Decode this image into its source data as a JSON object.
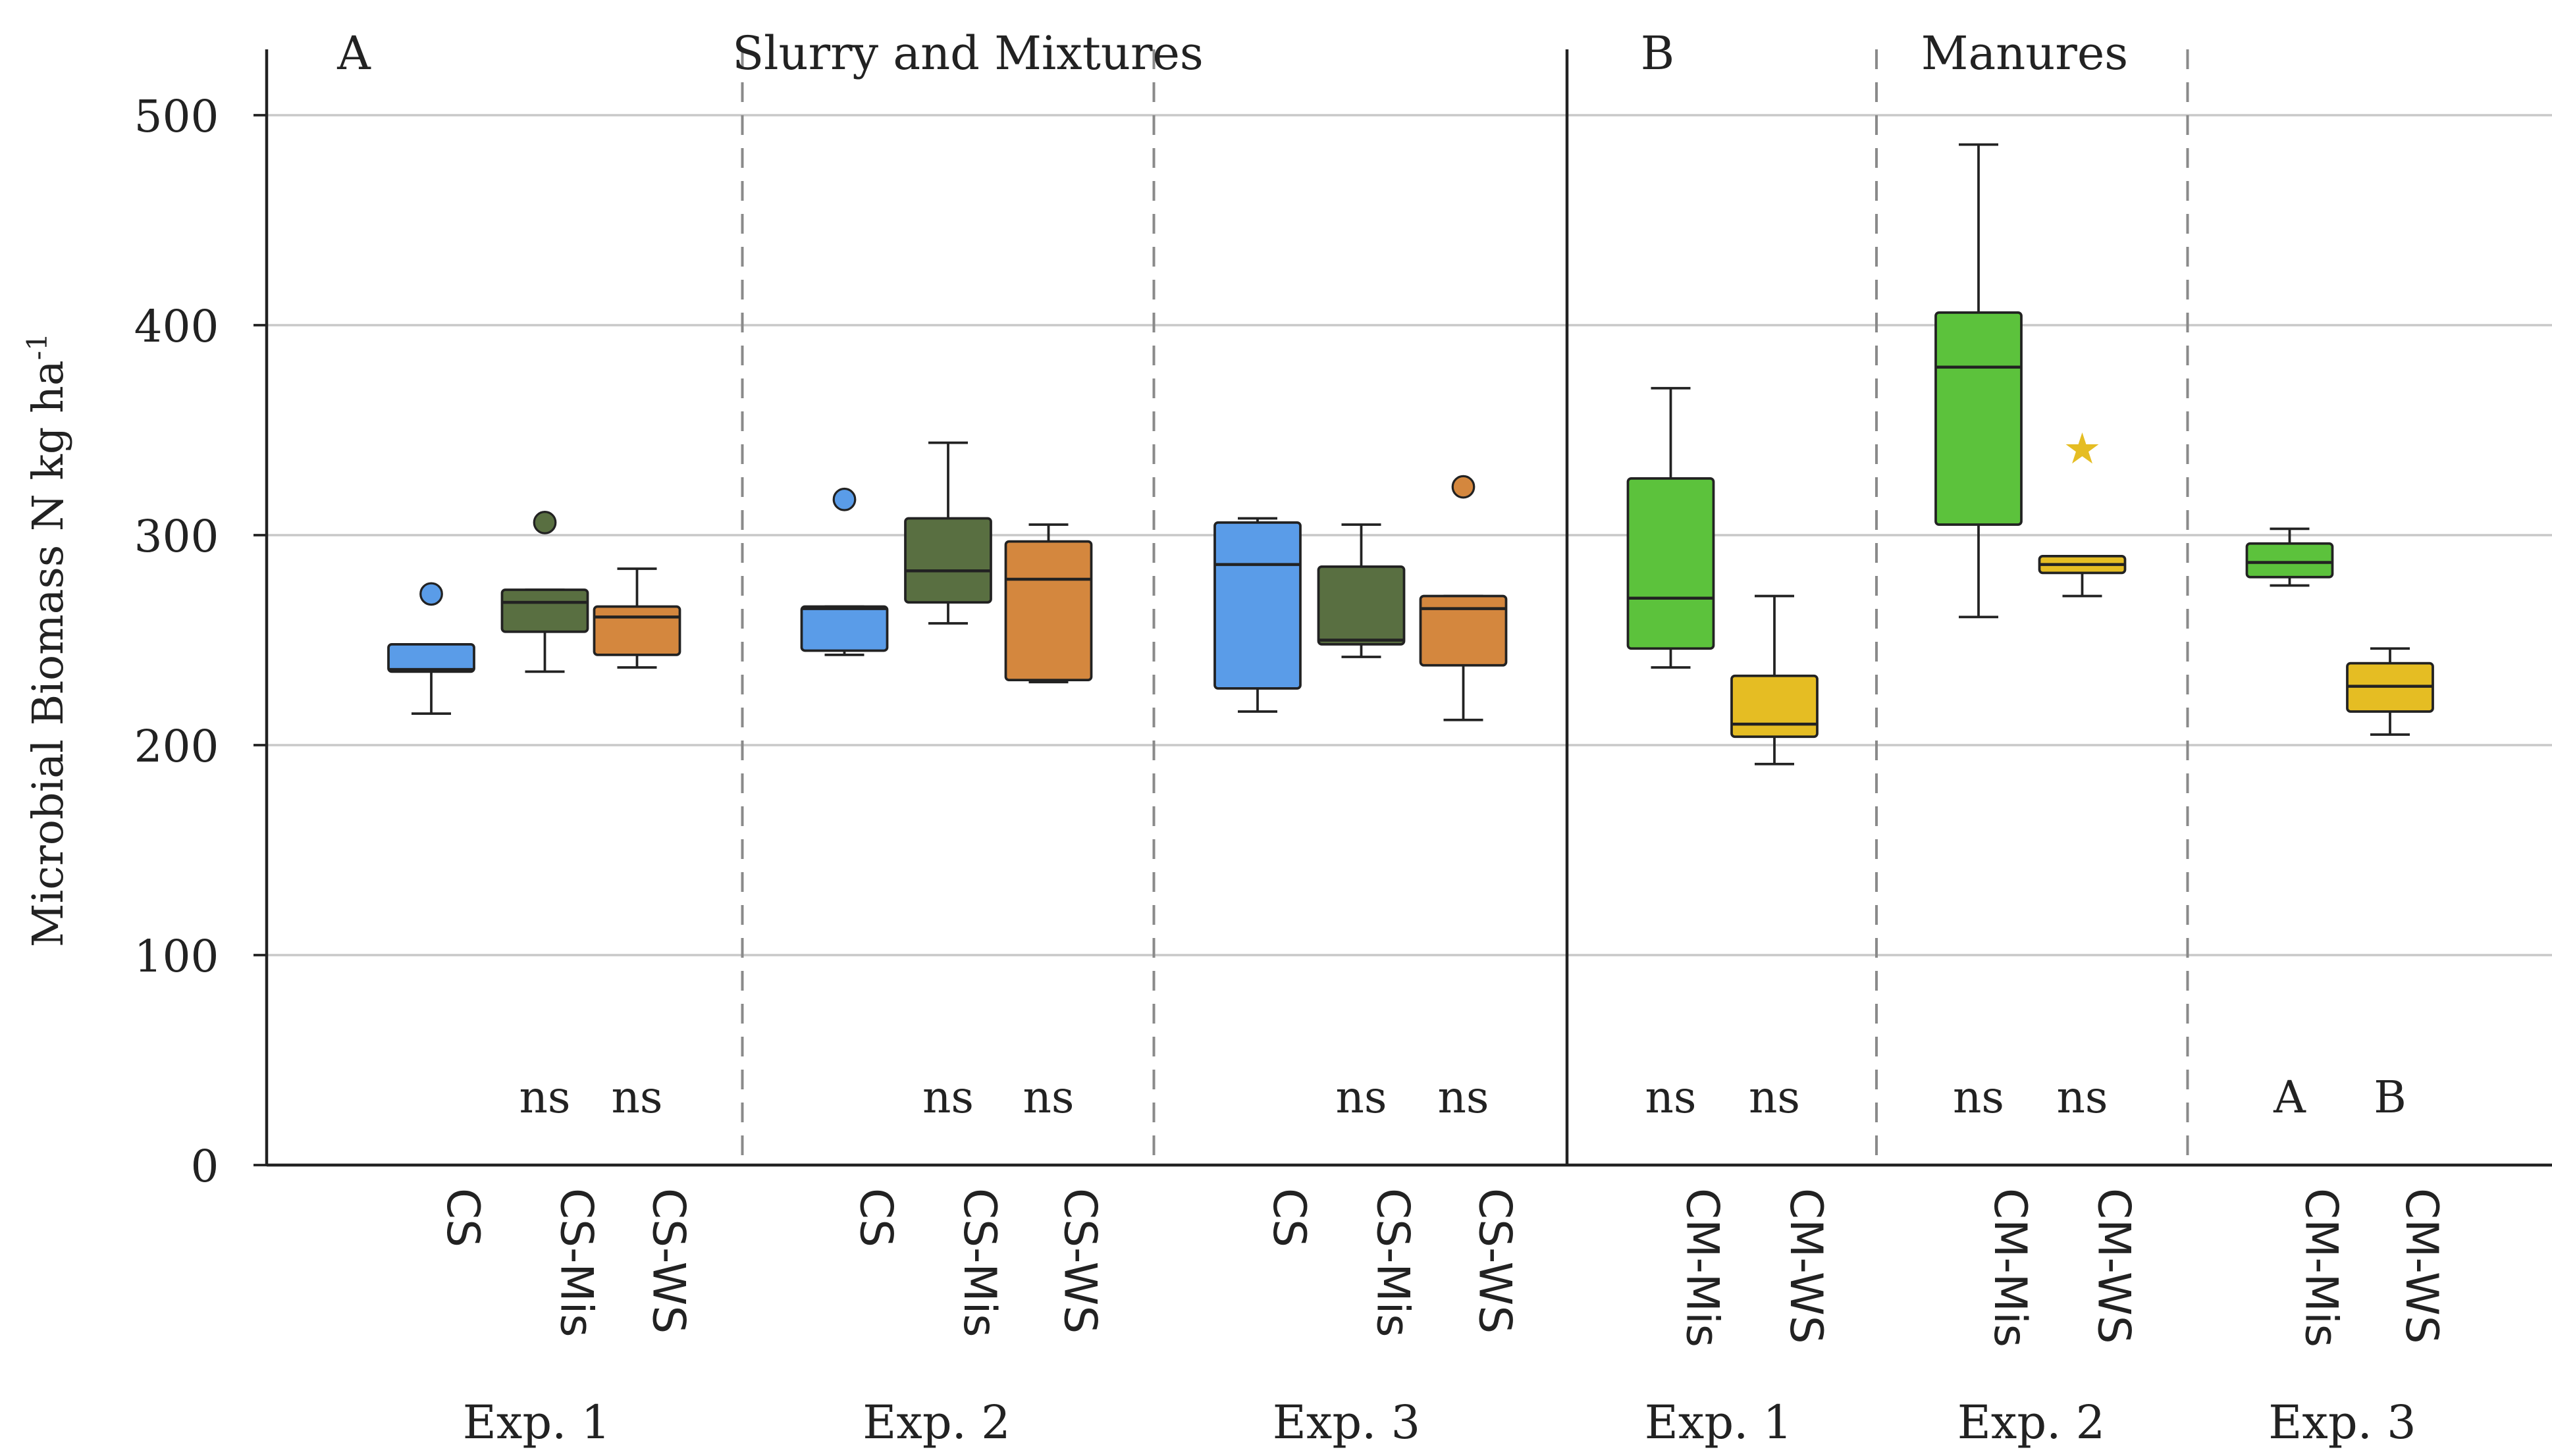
{
  "chart_data": {
    "type": "boxplot",
    "ylabel": "Microbial Biomass N kg ha",
    "ylabel_sup": "-1",
    "ylim": [
      0,
      500
    ],
    "yticks": [
      0,
      100,
      200,
      300,
      400,
      500
    ],
    "grid": true,
    "colors": {
      "CS": "#5a9ce8",
      "CS-Mis": "#596f41",
      "CS-WS": "#d4873e",
      "CM-Mis": "#5cc23c",
      "CM-WS": "#e5bd23"
    },
    "panels": [
      {
        "letter": "A",
        "title": "Slurry and Mixtures",
        "groups": [
          {
            "label": "Exp. 1",
            "boxes": [
              {
                "name": "CS",
                "min": 215,
                "q1": 235,
                "median": 236,
                "q3": 248,
                "max": 248,
                "outliers": [
                  {
                    "value": 272,
                    "marker": "circle"
                  }
                ],
                "sig": ""
              },
              {
                "name": "CS-Mis",
                "min": 235,
                "q1": 254,
                "median": 268,
                "q3": 274,
                "max": 274,
                "outliers": [
                  {
                    "value": 306,
                    "marker": "circle"
                  }
                ],
                "sig": "ns"
              },
              {
                "name": "CS-WS",
                "min": 237,
                "q1": 243,
                "median": 261,
                "q3": 266,
                "max": 284,
                "outliers": [],
                "sig": "ns"
              }
            ]
          },
          {
            "label": "Exp. 2",
            "boxes": [
              {
                "name": "CS",
                "min": 243,
                "q1": 245,
                "median": 265,
                "q3": 266,
                "max": 266,
                "outliers": [
                  {
                    "value": 317,
                    "marker": "circle"
                  }
                ],
                "sig": ""
              },
              {
                "name": "CS-Mis",
                "min": 258,
                "q1": 268,
                "median": 283,
                "q3": 308,
                "max": 344,
                "outliers": [],
                "sig": "ns"
              },
              {
                "name": "CS-WS",
                "min": 230,
                "q1": 231,
                "median": 279,
                "q3": 297,
                "max": 305,
                "outliers": [],
                "sig": "ns"
              }
            ]
          },
          {
            "label": "Exp. 3",
            "boxes": [
              {
                "name": "CS",
                "min": 216,
                "q1": 227,
                "median": 286,
                "q3": 306,
                "max": 308,
                "outliers": [],
                "sig": ""
              },
              {
                "name": "CS-Mis",
                "min": 242,
                "q1": 248,
                "median": 250,
                "q3": 285,
                "max": 305,
                "outliers": [],
                "sig": "ns"
              },
              {
                "name": "CS-WS",
                "min": 212,
                "q1": 238,
                "median": 265,
                "q3": 271,
                "max": 271,
                "outliers": [
                  {
                    "value": 323,
                    "marker": "circle"
                  }
                ],
                "sig": "ns"
              }
            ]
          }
        ]
      },
      {
        "letter": "B",
        "title": "Manures",
        "groups": [
          {
            "label": "Exp. 1",
            "boxes": [
              {
                "name": "CM-Mis",
                "min": 237,
                "q1": 246,
                "median": 270,
                "q3": 327,
                "max": 370,
                "outliers": [],
                "sig": "ns"
              },
              {
                "name": "CM-WS",
                "min": 191,
                "q1": 204,
                "median": 210,
                "q3": 233,
                "max": 271,
                "outliers": [],
                "sig": "ns"
              }
            ]
          },
          {
            "label": "Exp. 2",
            "boxes": [
              {
                "name": "CM-Mis",
                "min": 261,
                "q1": 305,
                "median": 380,
                "q3": 406,
                "max": 486,
                "outliers": [],
                "sig": "ns"
              },
              {
                "name": "CM-WS",
                "min": 271,
                "q1": 282,
                "median": 286,
                "q3": 290,
                "max": 290,
                "outliers": [
                  {
                    "value": 342,
                    "marker": "star"
                  }
                ],
                "sig": "ns"
              }
            ]
          },
          {
            "label": "Exp. 3",
            "boxes": [
              {
                "name": "CM-Mis",
                "min": 276,
                "q1": 280,
                "median": 287,
                "q3": 296,
                "max": 303,
                "outliers": [],
                "sig": "A"
              },
              {
                "name": "CM-WS",
                "min": 205,
                "q1": 216,
                "median": 228,
                "q3": 239,
                "max": 246,
                "outliers": [],
                "sig": "B"
              }
            ]
          }
        ]
      }
    ]
  }
}
